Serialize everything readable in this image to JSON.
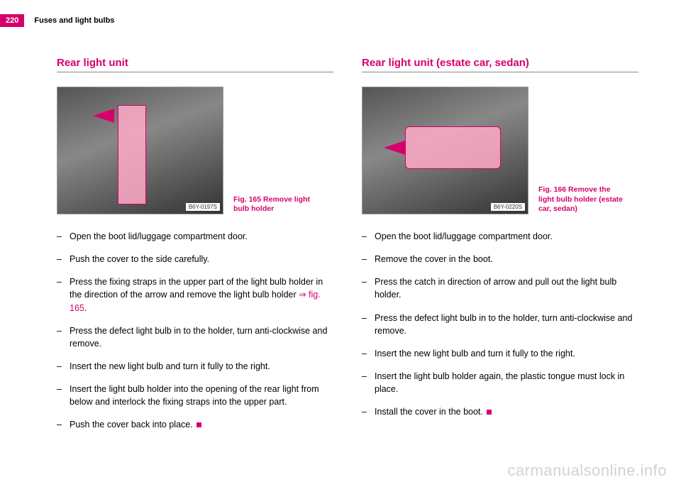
{
  "header": {
    "page_number": "220",
    "section_title": "Fuses and light bulbs"
  },
  "left": {
    "heading": "Rear light unit",
    "figure": {
      "label": "B6Y-0197S",
      "caption": "Fig. 165  Remove light bulb holder"
    },
    "steps": [
      {
        "text": "Open the boot lid/luggage compartment door."
      },
      {
        "text": "Push the cover to the side carefully."
      },
      {
        "text_pre": "Press the fixing straps in the upper part of the light bulb holder in the direction of the arrow and remove the light bulb holder ",
        "link": "⇒ fig. 165",
        "text_post": "."
      },
      {
        "text": "Press the defect light bulb in to the holder, turn anti-clockwise and remove."
      },
      {
        "text": "Insert the new light bulb and turn it fully to the right."
      },
      {
        "text": "Insert the light bulb holder into the opening of the rear light from below and interlock the fixing straps into the upper part."
      },
      {
        "text": "Push the cover back into place.",
        "end": true
      }
    ]
  },
  "right": {
    "heading": "Rear light unit (estate car, sedan)",
    "figure": {
      "label": "B6Y-0220S",
      "caption": "Fig. 166  Remove the light bulb holder (estate car, sedan)"
    },
    "steps": [
      {
        "text": "Open the boot lid/luggage compartment door."
      },
      {
        "text": "Remove the cover in the boot."
      },
      {
        "text": "Press the catch in direction of arrow and pull out the light bulb holder."
      },
      {
        "text": "Press the defect light bulb in to the holder, turn anti-clockwise and remove."
      },
      {
        "text": "Insert the new light bulb and turn it fully to the right."
      },
      {
        "text": "Insert the light bulb holder again, the plastic tongue must lock in place."
      },
      {
        "text": "Install the cover in the boot.",
        "end": true
      }
    ]
  },
  "watermark": "carmanualsonline.info",
  "colors": {
    "accent": "#d6006c",
    "text": "#000000",
    "background": "#ffffff"
  }
}
